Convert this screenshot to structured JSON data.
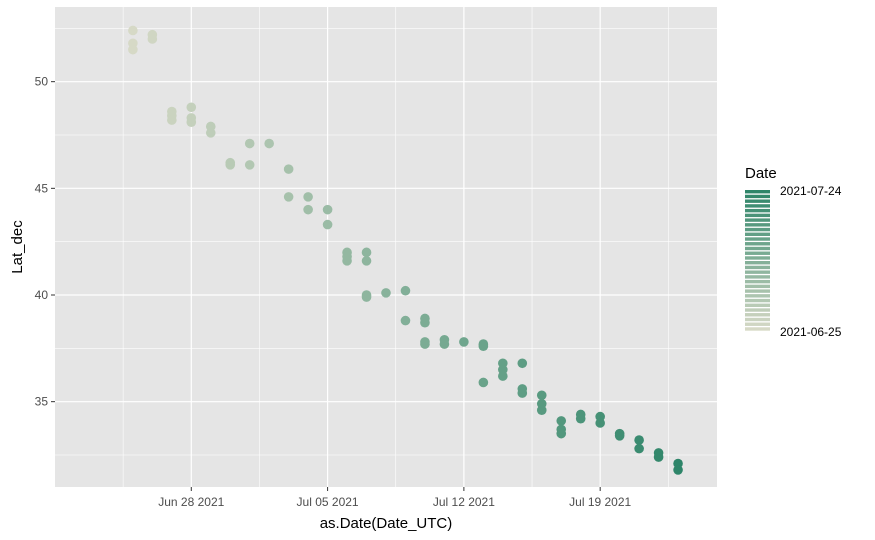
{
  "colors": {
    "panel_bg": "#E5E5E5",
    "grid_major": "#FFFFFF",
    "low": "#D6D9C6",
    "high": "#2E8569",
    "tick": "#333333"
  },
  "chart_data": {
    "type": "scatter",
    "title": "",
    "xlabel": "as.Date(Date_UTC)",
    "ylabel": "Lat_dec",
    "x_type": "date",
    "xlim": [
      "2021-06-21",
      "2021-07-25"
    ],
    "ylim": [
      31,
      53.5
    ],
    "x_ticks": [
      "2021-06-28",
      "2021-07-05",
      "2021-07-12",
      "2021-07-19"
    ],
    "x_tick_labels": [
      "Jun 28 2021",
      "Jul 05 2021",
      "Jul 12 2021",
      "Jul 19 2021"
    ],
    "y_ticks": [
      35,
      40,
      45,
      50
    ],
    "y_tick_labels": [
      "35",
      "40",
      "45",
      "50"
    ],
    "grid": true,
    "color_by": "Date",
    "legend": {
      "title": "Date",
      "position": "right",
      "labels": [
        "2021-07-24",
        "2021-06-25"
      ]
    },
    "points": [
      {
        "x": "2021-06-25",
        "y": 52.4
      },
      {
        "x": "2021-06-25",
        "y": 51.8
      },
      {
        "x": "2021-06-25",
        "y": 51.5
      },
      {
        "x": "2021-06-26",
        "y": 52.2
      },
      {
        "x": "2021-06-26",
        "y": 52.0
      },
      {
        "x": "2021-06-27",
        "y": 48.6
      },
      {
        "x": "2021-06-27",
        "y": 48.4
      },
      {
        "x": "2021-06-27",
        "y": 48.2
      },
      {
        "x": "2021-06-28",
        "y": 48.8
      },
      {
        "x": "2021-06-28",
        "y": 48.3
      },
      {
        "x": "2021-06-28",
        "y": 48.1
      },
      {
        "x": "2021-06-29",
        "y": 47.9
      },
      {
        "x": "2021-06-29",
        "y": 47.6
      },
      {
        "x": "2021-06-30",
        "y": 46.2
      },
      {
        "x": "2021-06-30",
        "y": 46.1
      },
      {
        "x": "2021-07-01",
        "y": 47.1
      },
      {
        "x": "2021-07-01",
        "y": 46.1
      },
      {
        "x": "2021-07-02",
        "y": 47.1
      },
      {
        "x": "2021-07-03",
        "y": 45.9
      },
      {
        "x": "2021-07-03",
        "y": 44.6
      },
      {
        "x": "2021-07-04",
        "y": 44.6
      },
      {
        "x": "2021-07-04",
        "y": 44.0
      },
      {
        "x": "2021-07-05",
        "y": 44.0
      },
      {
        "x": "2021-07-05",
        "y": 43.3
      },
      {
        "x": "2021-07-06",
        "y": 42.0
      },
      {
        "x": "2021-07-06",
        "y": 41.8
      },
      {
        "x": "2021-07-06",
        "y": 41.6
      },
      {
        "x": "2021-07-07",
        "y": 42.0
      },
      {
        "x": "2021-07-07",
        "y": 41.6
      },
      {
        "x": "2021-07-07",
        "y": 40.0
      },
      {
        "x": "2021-07-07",
        "y": 39.9
      },
      {
        "x": "2021-07-08",
        "y": 40.1
      },
      {
        "x": "2021-07-09",
        "y": 40.2
      },
      {
        "x": "2021-07-09",
        "y": 38.8
      },
      {
        "x": "2021-07-10",
        "y": 38.9
      },
      {
        "x": "2021-07-10",
        "y": 38.7
      },
      {
        "x": "2021-07-10",
        "y": 37.8
      },
      {
        "x": "2021-07-10",
        "y": 37.7
      },
      {
        "x": "2021-07-11",
        "y": 37.9
      },
      {
        "x": "2021-07-11",
        "y": 37.7
      },
      {
        "x": "2021-07-12",
        "y": 37.8
      },
      {
        "x": "2021-07-13",
        "y": 37.7
      },
      {
        "x": "2021-07-13",
        "y": 37.6
      },
      {
        "x": "2021-07-13",
        "y": 35.9
      },
      {
        "x": "2021-07-14",
        "y": 36.8
      },
      {
        "x": "2021-07-14",
        "y": 36.5
      },
      {
        "x": "2021-07-14",
        "y": 36.2
      },
      {
        "x": "2021-07-15",
        "y": 36.8
      },
      {
        "x": "2021-07-15",
        "y": 35.6
      },
      {
        "x": "2021-07-15",
        "y": 35.4
      },
      {
        "x": "2021-07-16",
        "y": 35.3
      },
      {
        "x": "2021-07-16",
        "y": 34.9
      },
      {
        "x": "2021-07-16",
        "y": 34.6
      },
      {
        "x": "2021-07-17",
        "y": 34.1
      },
      {
        "x": "2021-07-17",
        "y": 33.7
      },
      {
        "x": "2021-07-17",
        "y": 33.5
      },
      {
        "x": "2021-07-18",
        "y": 34.4
      },
      {
        "x": "2021-07-18",
        "y": 34.2
      },
      {
        "x": "2021-07-19",
        "y": 34.3
      },
      {
        "x": "2021-07-19",
        "y": 34.0
      },
      {
        "x": "2021-07-20",
        "y": 33.5
      },
      {
        "x": "2021-07-20",
        "y": 33.4
      },
      {
        "x": "2021-07-21",
        "y": 33.2
      },
      {
        "x": "2021-07-21",
        "y": 32.8
      },
      {
        "x": "2021-07-22",
        "y": 32.6
      },
      {
        "x": "2021-07-22",
        "y": 32.4
      },
      {
        "x": "2021-07-23",
        "y": 32.1
      },
      {
        "x": "2021-07-23",
        "y": 31.8
      }
    ]
  }
}
